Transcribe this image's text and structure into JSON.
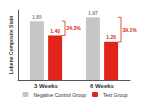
{
  "chart_data": {
    "type": "bar",
    "y_label": "Lobene Composite Stain",
    "categories": [
      "3 Weeks",
      "6 Weeks"
    ],
    "series": [
      {
        "name": "Negative Control Group",
        "color": "#c6c6c6",
        "values": [
          1.85,
          1.97
        ],
        "value_labels": [
          "1.85",
          "1.97"
        ]
      },
      {
        "name": "Test Group",
        "color": "#e2231a",
        "values": [
          1.4,
          1.2
        ],
        "value_labels": [
          "1.40",
          "1.20"
        ]
      }
    ],
    "annotations": [
      {
        "text": "24.3%",
        "category": "3 Weeks"
      },
      {
        "text": "39.1%",
        "category": "6 Weeks"
      }
    ],
    "ylim": [
      0,
      2.2
    ],
    "grid": false,
    "legend": "bottom",
    "data_labels": true,
    "tick_labels": "x"
  }
}
